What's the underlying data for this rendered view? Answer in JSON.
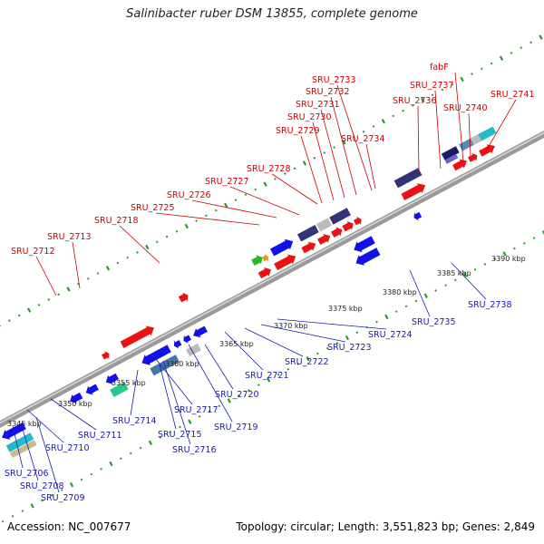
{
  "title": "Salinibacter ruber DSM 13855, complete genome",
  "footer": {
    "accession": "Accession: NC_007677",
    "summary": "Topology: circular; Length: 3,551,823 bp; Genes: 2,849"
  },
  "colors": {
    "top_label": "#cc0000",
    "bottom_label": "#1a1aaa",
    "backbone": "#8a8a8a",
    "tick": "#2a9a2a"
  },
  "scale_labels": [
    "3345 kbp",
    "3350 kbp",
    "3355 kbp",
    "3360 kbp",
    "3365 kbp",
    "3370 kbp",
    "3375 kbp",
    "3380 kbp",
    "3385 kbp",
    "3390 kbp"
  ],
  "top_genes": [
    "SRU_2712",
    "SRU_2713",
    "SRU_2718",
    "SRU_2725",
    "SRU_2726",
    "SRU_2727",
    "SRU_2728",
    "SRU_2729",
    "SRU_2730",
    "SRU_2731",
    "SRU_2732",
    "SRU_2733",
    "SRU_2734",
    "SRU_2736",
    "SRU_2737",
    "fabF",
    "SRU_2740",
    "SRU_2741"
  ],
  "bottom_genes": [
    "SRU_2706",
    "SRU_2708",
    "SRU_2709",
    "SRU_2710",
    "SRU_2711",
    "SRU_2714",
    "SRU_2715",
    "SRU_2716",
    "SRU_2717",
    "SRU_2719",
    "SRU_2720",
    "SRU_2721",
    "SRU_2722",
    "SRU_2723",
    "SRU_2724",
    "SRU_2735",
    "SRU_2738"
  ]
}
